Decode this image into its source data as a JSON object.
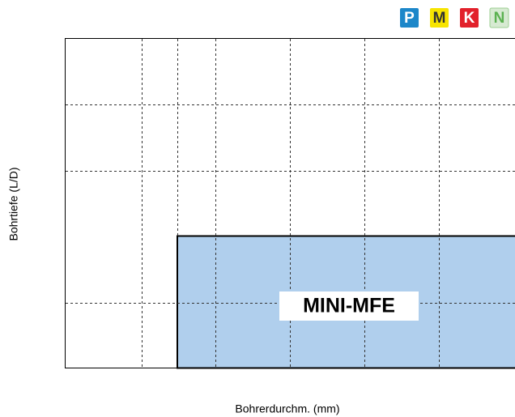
{
  "region": {
    "label": "MINI-MFE"
  },
  "axes": {
    "y_label": "Bohrtiefe (L/D)",
    "x_label": "Bohrerdurchm. (mm)"
  },
  "materials": [
    "P",
    "M",
    "K",
    "N"
  ]
}
